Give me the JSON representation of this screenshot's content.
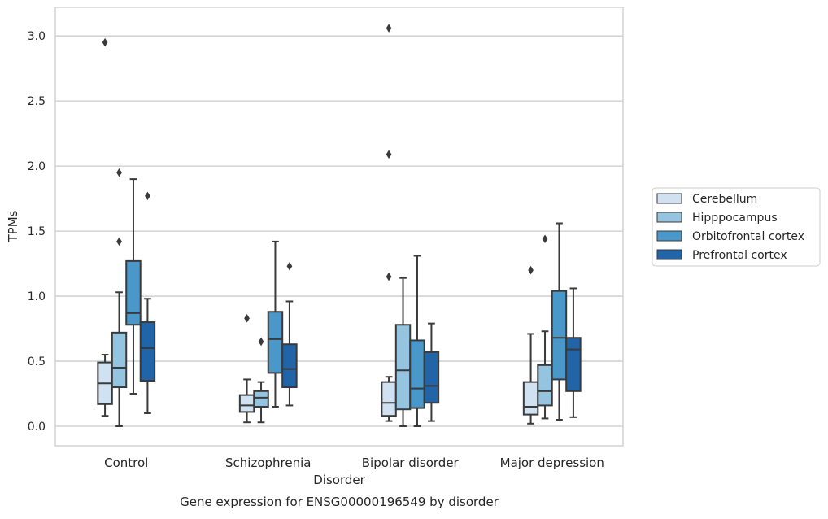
{
  "caption": "Gene expression for ENSG00000196549 by disorder",
  "chart_data": {
    "type": "box",
    "xlabel": "Disorder",
    "ylabel": "TPMs",
    "ylim": [
      -0.15,
      3.22
    ],
    "yticks": [
      0.0,
      0.5,
      1.0,
      1.5,
      2.0,
      2.5,
      3.0
    ],
    "ytick_labels": [
      "0.0",
      "0.5",
      "1.0",
      "1.5",
      "2.0",
      "2.5",
      "3.0"
    ],
    "grid": "horizontal",
    "legend_position": "right",
    "categories": [
      "Control",
      "Schizophrenia",
      "Bipolar disorder",
      "Major depression"
    ],
    "series": [
      {
        "name": "Cerebellum",
        "color": "#d0e1f2",
        "boxes": [
          {
            "whisker_low": 0.08,
            "q1": 0.17,
            "median": 0.33,
            "q3": 0.49,
            "whisker_high": 0.55,
            "outliers": [
              2.95
            ]
          },
          {
            "whisker_low": 0.03,
            "q1": 0.11,
            "median": 0.16,
            "q3": 0.24,
            "whisker_high": 0.36,
            "outliers": [
              0.83
            ]
          },
          {
            "whisker_low": 0.04,
            "q1": 0.08,
            "median": 0.18,
            "q3": 0.34,
            "whisker_high": 0.38,
            "outliers": [
              1.15,
              2.09,
              3.06
            ]
          },
          {
            "whisker_low": 0.02,
            "q1": 0.09,
            "median": 0.15,
            "q3": 0.34,
            "whisker_high": 0.71,
            "outliers": [
              1.2
            ]
          }
        ]
      },
      {
        "name": "Hipppocampus",
        "color": "#94c4df",
        "boxes": [
          {
            "whisker_low": 0.0,
            "q1": 0.3,
            "median": 0.45,
            "q3": 0.72,
            "whisker_high": 1.03,
            "outliers": [
              1.42,
              1.95
            ]
          },
          {
            "whisker_low": 0.03,
            "q1": 0.15,
            "median": 0.22,
            "q3": 0.27,
            "whisker_high": 0.34,
            "outliers": [
              0.65
            ]
          },
          {
            "whisker_low": 0.0,
            "q1": 0.13,
            "median": 0.43,
            "q3": 0.78,
            "whisker_high": 1.14,
            "outliers": []
          },
          {
            "whisker_low": 0.06,
            "q1": 0.16,
            "median": 0.27,
            "q3": 0.47,
            "whisker_high": 0.73,
            "outliers": [
              1.44
            ]
          }
        ]
      },
      {
        "name": "Orbitofrontal cortex",
        "color": "#4a98c9",
        "boxes": [
          {
            "whisker_low": 0.25,
            "q1": 0.78,
            "median": 0.87,
            "q3": 1.27,
            "whisker_high": 1.9,
            "outliers": []
          },
          {
            "whisker_low": 0.15,
            "q1": 0.41,
            "median": 0.67,
            "q3": 0.88,
            "whisker_high": 1.42,
            "outliers": []
          },
          {
            "whisker_low": 0.0,
            "q1": 0.14,
            "median": 0.29,
            "q3": 0.66,
            "whisker_high": 1.31,
            "outliers": []
          },
          {
            "whisker_low": 0.05,
            "q1": 0.36,
            "median": 0.68,
            "q3": 1.04,
            "whisker_high": 1.56,
            "outliers": []
          }
        ]
      },
      {
        "name": "Prefrontal cortex",
        "color": "#2264a8",
        "boxes": [
          {
            "whisker_low": 0.1,
            "q1": 0.35,
            "median": 0.6,
            "q3": 0.8,
            "whisker_high": 0.98,
            "outliers": [
              1.77
            ]
          },
          {
            "whisker_low": 0.16,
            "q1": 0.3,
            "median": 0.44,
            "q3": 0.63,
            "whisker_high": 0.96,
            "outliers": [
              1.23
            ]
          },
          {
            "whisker_low": 0.04,
            "q1": 0.18,
            "median": 0.31,
            "q3": 0.57,
            "whisker_high": 0.79,
            "outliers": []
          },
          {
            "whisker_low": 0.07,
            "q1": 0.27,
            "median": 0.59,
            "q3": 0.68,
            "whisker_high": 1.06,
            "outliers": []
          }
        ]
      }
    ]
  }
}
